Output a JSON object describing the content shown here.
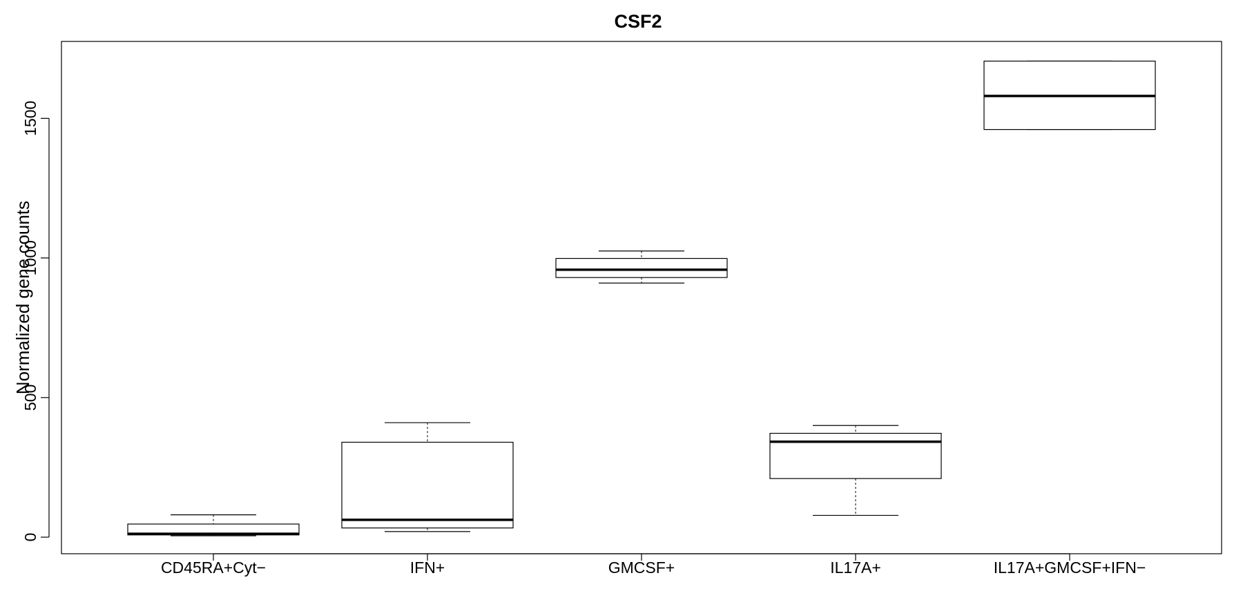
{
  "chart_data": {
    "type": "boxplot",
    "title": "CSF2",
    "xlabel": "",
    "ylabel": "Normalized gene counts",
    "ylim": [
      -60,
      1780
    ],
    "yticks": [
      0,
      500,
      1000,
      1500
    ],
    "grid": false,
    "legend": "none",
    "categories": [
      "CD45RA+Cyt−",
      "IFN+",
      "GMCSF+",
      "IL17A+",
      "IL17A+GMCSF+IFN−"
    ],
    "boxes": [
      {
        "category": "CD45RA+Cyt−",
        "whisker_low": 5,
        "q1": 8,
        "median": 12,
        "q3": 47,
        "whisker_high": 80
      },
      {
        "category": "IFN+",
        "whisker_low": 20,
        "q1": 33,
        "median": 62,
        "q3": 340,
        "whisker_high": 410
      },
      {
        "category": "GMCSF+",
        "whisker_low": 910,
        "q1": 930,
        "median": 958,
        "q3": 998,
        "whisker_high": 1025
      },
      {
        "category": "IL17A+",
        "whisker_low": 78,
        "q1": 210,
        "median": 342,
        "q3": 372,
        "whisker_high": 400
      },
      {
        "category": "IL17A+GMCSF+IFN−",
        "whisker_low": 1460,
        "q1": 1460,
        "median": 1580,
        "q3": 1705,
        "whisker_high": 1705
      }
    ]
  }
}
